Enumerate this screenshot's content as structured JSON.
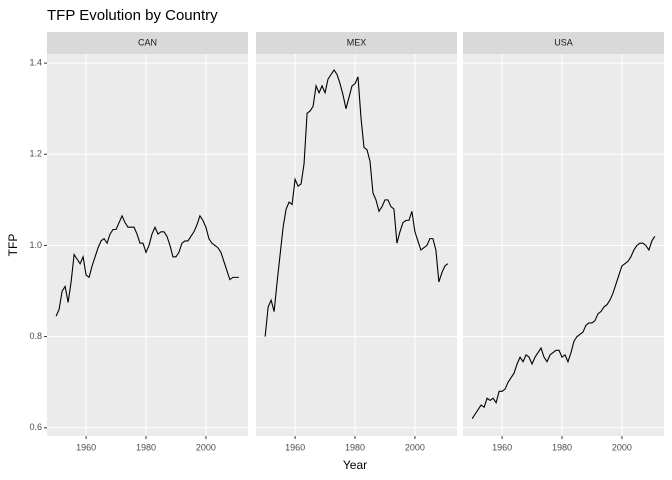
{
  "chart_data": {
    "type": "line",
    "title": "TFP Evolution by Country",
    "xlabel": "Year",
    "ylabel": "TFP",
    "x": [
      1950,
      1951,
      1952,
      1953,
      1954,
      1955,
      1956,
      1957,
      1958,
      1959,
      1960,
      1961,
      1962,
      1963,
      1964,
      1965,
      1966,
      1967,
      1968,
      1969,
      1970,
      1971,
      1972,
      1973,
      1974,
      1975,
      1976,
      1977,
      1978,
      1979,
      1980,
      1981,
      1982,
      1983,
      1984,
      1985,
      1986,
      1987,
      1988,
      1989,
      1990,
      1991,
      1992,
      1993,
      1994,
      1995,
      1996,
      1997,
      1998,
      1999,
      2000,
      2001,
      2002,
      2003,
      2004,
      2005,
      2006,
      2007,
      2008,
      2009,
      2010,
      2011
    ],
    "series": [
      {
        "name": "CAN",
        "color": "#000000",
        "values": [
          0.845,
          0.86,
          0.9,
          0.91,
          0.875,
          0.92,
          0.98,
          0.97,
          0.96,
          0.975,
          0.935,
          0.93,
          0.955,
          0.975,
          0.995,
          1.01,
          1.015,
          1.005,
          1.025,
          1.035,
          1.035,
          1.05,
          1.065,
          1.05,
          1.04,
          1.04,
          1.04,
          1.025,
          1.005,
          1.005,
          0.985,
          1.0,
          1.025,
          1.04,
          1.025,
          1.03,
          1.03,
          1.02,
          1.0,
          0.975,
          0.975,
          0.985,
          1.005,
          1.01,
          1.01,
          1.02,
          1.03,
          1.045,
          1.065,
          1.055,
          1.04,
          1.015,
          1.005,
          1.0,
          0.995,
          0.985,
          0.965,
          0.945,
          0.925,
          0.93,
          0.93,
          0.93
        ]
      },
      {
        "name": "MEX",
        "color": "#000000",
        "values": [
          0.8,
          0.865,
          0.88,
          0.855,
          0.92,
          0.98,
          1.04,
          1.08,
          1.095,
          1.09,
          1.145,
          1.13,
          1.135,
          1.18,
          1.29,
          1.295,
          1.305,
          1.35,
          1.335,
          1.35,
          1.335,
          1.365,
          1.375,
          1.385,
          1.375,
          1.355,
          1.33,
          1.3,
          1.325,
          1.35,
          1.355,
          1.37,
          1.28,
          1.215,
          1.21,
          1.185,
          1.115,
          1.1,
          1.075,
          1.085,
          1.1,
          1.1,
          1.085,
          1.08,
          1.005,
          1.03,
          1.05,
          1.055,
          1.055,
          1.075,
          1.03,
          1.01,
          0.99,
          0.995,
          1.0,
          1.015,
          1.015,
          0.99,
          0.92,
          0.94,
          0.955,
          0.96
        ]
      },
      {
        "name": "USA",
        "color": "#000000",
        "values": [
          0.62,
          0.63,
          0.64,
          0.65,
          0.645,
          0.665,
          0.66,
          0.665,
          0.655,
          0.68,
          0.68,
          0.685,
          0.7,
          0.71,
          0.72,
          0.74,
          0.755,
          0.745,
          0.76,
          0.755,
          0.74,
          0.755,
          0.765,
          0.775,
          0.755,
          0.745,
          0.76,
          0.765,
          0.77,
          0.77,
          0.755,
          0.76,
          0.745,
          0.765,
          0.79,
          0.8,
          0.805,
          0.81,
          0.825,
          0.83,
          0.83,
          0.835,
          0.85,
          0.855,
          0.865,
          0.87,
          0.88,
          0.895,
          0.915,
          0.935,
          0.955,
          0.96,
          0.965,
          0.975,
          0.99,
          1.0,
          1.005,
          1.005,
          1.0,
          0.99,
          1.01,
          1.02
        ]
      }
    ],
    "xlim": [
      1946.95,
      2014.05
    ],
    "xticks": [
      1960,
      1980,
      2000
    ],
    "ylim": [
      0.582,
      1.42
    ],
    "yticks": [
      0.6,
      0.8,
      {
        "value": 1.0,
        "label": "1.0"
      },
      1.2,
      1.4
    ],
    "grid": true
  }
}
